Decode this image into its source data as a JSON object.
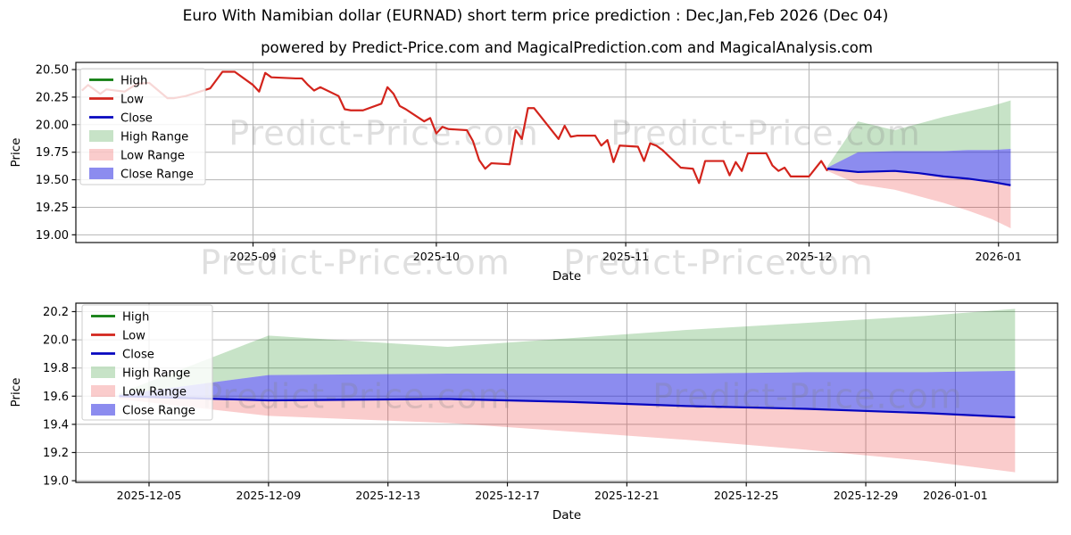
{
  "title": "Euro With Namibian dollar (EURNAD) short term price prediction : Dec,Jan,Feb 2026 (Dec 04)",
  "subtitle": "powered by Predict-Price.com and MagicalPrediction.com and MagicalAnalysis.com",
  "watermark": "Predict-Price.com",
  "colors": {
    "high_line": "#0f7d0f",
    "low_line": "#d3241c",
    "close_line": "#0606bf",
    "high_range_fill": "rgba(0,128,0,0.22)",
    "low_range_fill": "rgba(230,25,25,0.22)",
    "close_range_fill": "rgba(35,35,225,0.52)",
    "grid": "#b5b5b5",
    "spine": "#111111",
    "legend_border": "#cccccc",
    "legend_bg": "rgba(255,255,255,0.82)"
  },
  "legend": {
    "items": [
      {
        "label": "High",
        "type": "line",
        "color_key": "high_line"
      },
      {
        "label": "Low",
        "type": "line",
        "color_key": "low_line"
      },
      {
        "label": "Close",
        "type": "line",
        "color_key": "close_line"
      },
      {
        "label": "High Range",
        "type": "patch",
        "color_key": "high_range_fill"
      },
      {
        "label": "Low Range",
        "type": "patch",
        "color_key": "low_range_fill"
      },
      {
        "label": "Close Range",
        "type": "patch",
        "color_key": "close_range_fill"
      }
    ]
  },
  "forecast": {
    "dates": [
      "2025-12-04",
      "2025-12-09",
      "2025-12-15",
      "2025-12-19",
      "2025-12-23",
      "2025-12-27",
      "2025-12-31",
      "2026-01-03"
    ],
    "high_range_top": [
      19.62,
      20.03,
      19.95,
      20.01,
      20.07,
      20.12,
      20.17,
      20.22
    ],
    "close_range_top": [
      19.61,
      19.75,
      19.76,
      19.76,
      19.76,
      19.77,
      19.77,
      19.78
    ],
    "close": [
      19.6,
      19.57,
      19.58,
      19.56,
      19.53,
      19.51,
      19.48,
      19.45
    ],
    "low_range_bottom": [
      19.58,
      19.46,
      19.41,
      19.35,
      19.29,
      19.22,
      19.14,
      19.06
    ]
  },
  "chart_data": [
    {
      "type": "line",
      "name": "price-history-with-forecast",
      "xlabel": "Date",
      "ylabel": "Price",
      "ylim": [
        18.93,
        20.565
      ],
      "xlim": [
        "2025-08-03",
        "2026-01-10"
      ],
      "grid": true,
      "legend_position": "upper left",
      "yticks": [
        {
          "label": "19.00",
          "value": 19.0
        },
        {
          "label": "19.25",
          "value": 19.25
        },
        {
          "label": "19.50",
          "value": 19.5
        },
        {
          "label": "19.75",
          "value": 19.75
        },
        {
          "label": "20.00",
          "value": 20.0
        },
        {
          "label": "20.25",
          "value": 20.25
        },
        {
          "label": "20.50",
          "value": 20.5
        }
      ],
      "xticks": [
        {
          "label": "2025-09",
          "date": "2025-09-01"
        },
        {
          "label": "2025-10",
          "date": "2025-10-01"
        },
        {
          "label": "2025-11",
          "date": "2025-11-01"
        },
        {
          "label": "2025-12",
          "date": "2025-12-01"
        },
        {
          "label": "2026-01",
          "date": "2026-01-01"
        }
      ],
      "series": [
        {
          "name": "Low",
          "role": "history",
          "dates": [
            "2025-08-04",
            "2025-08-05",
            "2025-08-07",
            "2025-08-08",
            "2025-08-11",
            "2025-08-13",
            "2025-08-15",
            "2025-08-18",
            "2025-08-19",
            "2025-08-21",
            "2025-08-25",
            "2025-08-27",
            "2025-08-29",
            "2025-09-01",
            "2025-09-02",
            "2025-09-03",
            "2025-09-04",
            "2025-09-08",
            "2025-09-09",
            "2025-09-10",
            "2025-09-11",
            "2025-09-12",
            "2025-09-15",
            "2025-09-16",
            "2025-09-17",
            "2025-09-19",
            "2025-09-22",
            "2025-09-23",
            "2025-09-24",
            "2025-09-25",
            "2025-09-26",
            "2025-09-29",
            "2025-09-30",
            "2025-10-01",
            "2025-10-02",
            "2025-10-03",
            "2025-10-06",
            "2025-10-07",
            "2025-10-08",
            "2025-10-09",
            "2025-10-10",
            "2025-10-13",
            "2025-10-14",
            "2025-10-15",
            "2025-10-16",
            "2025-10-17",
            "2025-10-20",
            "2025-10-21",
            "2025-10-22",
            "2025-10-23",
            "2025-10-24",
            "2025-10-27",
            "2025-10-28",
            "2025-10-29",
            "2025-10-30",
            "2025-10-31",
            "2025-11-03",
            "2025-11-04",
            "2025-11-05",
            "2025-11-06",
            "2025-11-07",
            "2025-11-10",
            "2025-11-12",
            "2025-11-13",
            "2025-11-14",
            "2025-11-17",
            "2025-11-18",
            "2025-11-19",
            "2025-11-20",
            "2025-11-21",
            "2025-11-24",
            "2025-11-25",
            "2025-11-26",
            "2025-11-27",
            "2025-11-28",
            "2025-12-01",
            "2025-12-02",
            "2025-12-03",
            "2025-12-04"
          ],
          "values": [
            20.31,
            20.36,
            20.28,
            20.32,
            20.3,
            20.37,
            20.38,
            20.24,
            20.24,
            20.26,
            20.33,
            20.48,
            20.48,
            20.36,
            20.3,
            20.47,
            20.43,
            20.42,
            20.42,
            20.36,
            20.31,
            20.34,
            20.26,
            20.14,
            20.13,
            20.13,
            20.19,
            20.34,
            20.28,
            20.17,
            20.14,
            20.03,
            20.06,
            19.92,
            19.98,
            19.96,
            19.95,
            19.85,
            19.68,
            19.6,
            19.65,
            19.64,
            19.95,
            19.87,
            20.15,
            20.15,
            19.94,
            19.87,
            19.99,
            19.89,
            19.9,
            19.9,
            19.81,
            19.86,
            19.66,
            19.81,
            19.8,
            19.67,
            19.83,
            19.81,
            19.77,
            19.61,
            19.6,
            19.47,
            19.67,
            19.67,
            19.54,
            19.66,
            19.58,
            19.74,
            19.74,
            19.63,
            19.58,
            19.61,
            19.53,
            19.53,
            19.6,
            19.67,
            19.58
          ]
        }
      ],
      "has_forecast_bands": true
    },
    {
      "type": "area",
      "name": "forecast-detail",
      "xlabel": "Date",
      "ylabel": "Price",
      "ylim": [
        18.99,
        20.26
      ],
      "xlim": [
        "2025-12-03",
        "2026-01-04"
      ],
      "grid": true,
      "legend_position": "upper left",
      "yticks": [
        {
          "label": "19.0",
          "value": 19.0
        },
        {
          "label": "19.2",
          "value": 19.2
        },
        {
          "label": "19.4",
          "value": 19.4
        },
        {
          "label": "19.6",
          "value": 19.6
        },
        {
          "label": "19.8",
          "value": 19.8
        },
        {
          "label": "20.0",
          "value": 20.0
        },
        {
          "label": "20.2",
          "value": 20.2
        }
      ],
      "xticks": [
        {
          "label": "2025-12-05",
          "date": "2025-12-05"
        },
        {
          "label": "2025-12-09",
          "date": "2025-12-09"
        },
        {
          "label": "2025-12-13",
          "date": "2025-12-13"
        },
        {
          "label": "2025-12-17",
          "date": "2025-12-17"
        },
        {
          "label": "2025-12-21",
          "date": "2025-12-21"
        },
        {
          "label": "2025-12-25",
          "date": "2025-12-25"
        },
        {
          "label": "2025-12-29",
          "date": "2025-12-29"
        },
        {
          "label": "2026-01-01",
          "date": "2026-01-01"
        }
      ],
      "series": [],
      "has_forecast_bands": true
    }
  ]
}
